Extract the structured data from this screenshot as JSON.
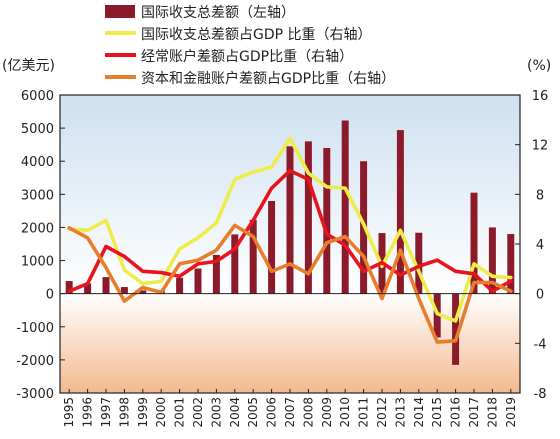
{
  "chart_data": {
    "type": "bar+line",
    "left_unit": "(亿美元)",
    "right_unit": "(%)",
    "categories": [
      "1995",
      "1996",
      "1997",
      "1998",
      "1999",
      "2000",
      "2001",
      "2002",
      "2003",
      "2004",
      "2005",
      "2006",
      "2007",
      "2008",
      "2009",
      "2010",
      "2011",
      "2012",
      "2013",
      "2014",
      "2015",
      "2016",
      "2017",
      "2018",
      "2019"
    ],
    "left_ticks": [
      "6000",
      "5000",
      "4000",
      "3000",
      "2000",
      "1000",
      "0",
      "-1000",
      "-2000",
      "-3000"
    ],
    "right_ticks": [
      "16",
      "12",
      "8",
      "4",
      "0",
      "-4",
      "-8"
    ],
    "ylim_left": [
      -3000,
      6000
    ],
    "ylim_right": [
      -8,
      16
    ],
    "bars": {
      "name": "国际收支总差额（左轴）",
      "color": "#8b1a2b",
      "values": [
        380,
        310,
        500,
        200,
        100,
        110,
        480,
        760,
        1170,
        1790,
        2230,
        2800,
        4450,
        4600,
        4400,
        5230,
        4000,
        1830,
        4940,
        1840,
        -1320,
        -2150,
        3050,
        2000,
        1800
      ]
    },
    "lines": [
      {
        "name": "国际收支总差额占GDP 比重（右轴）",
        "color": "#ecec4a",
        "values": [
          5.2,
          5.1,
          5.9,
          1.9,
          0.8,
          1.0,
          3.6,
          4.5,
          5.7,
          9.2,
          9.8,
          10.2,
          12.5,
          9.7,
          8.6,
          8.5,
          5.6,
          2.2,
          5.1,
          1.8,
          -1.6,
          -2.2,
          2.4,
          1.4,
          1.3
        ]
      },
      {
        "name": "经常账户差额占GDP比重（右轴）",
        "color": "#e8141d",
        "values": [
          0.2,
          0.8,
          3.8,
          3.0,
          1.8,
          1.7,
          1.4,
          2.4,
          2.6,
          3.6,
          5.9,
          8.5,
          9.9,
          9.2,
          4.8,
          3.9,
          1.8,
          2.5,
          1.5,
          2.2,
          2.7,
          1.8,
          1.6,
          0.2,
          1.0
        ]
      },
      {
        "name": "资本和金融账户差额占GDP比重（右轴）",
        "color": "#e87e2c",
        "values": [
          5.3,
          4.5,
          2.1,
          -0.6,
          0.5,
          0.1,
          2.4,
          2.7,
          3.5,
          5.5,
          4.6,
          1.8,
          2.4,
          1.6,
          4.1,
          4.6,
          3.0,
          -0.4,
          3.5,
          -0.4,
          -3.9,
          -3.8,
          0.9,
          0.9,
          0.2
        ]
      }
    ],
    "colors": {
      "positive_bg_top": "#cfe0f0",
      "positive_bg_bottom": "#ffffff",
      "negative_bg_top": "#ffffff",
      "negative_bg_bottom": "#f3b98f",
      "axis": "#222222"
    }
  }
}
